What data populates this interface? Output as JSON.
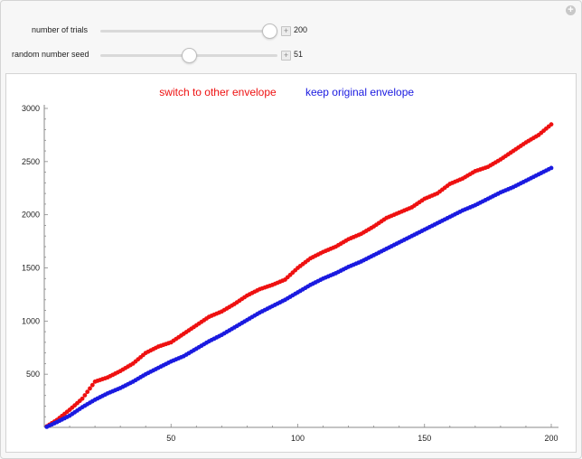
{
  "controls": {
    "trials": {
      "label": "number of trials",
      "value": "200",
      "fraction": 0.995
    },
    "seed": {
      "label": "random number seed",
      "value": "51",
      "fraction": 0.5
    }
  },
  "colors": {
    "switch": "#ee1111",
    "keep": "#1a1ae0"
  },
  "chart_data": {
    "type": "scatter",
    "title": "",
    "xlabel": "",
    "ylabel": "",
    "xlim": [
      0,
      200
    ],
    "ylim": [
      0,
      3000
    ],
    "x_ticks": [
      50,
      100,
      150,
      200
    ],
    "y_ticks": [
      500,
      1000,
      1500,
      2000,
      2500,
      3000
    ],
    "legend_position": "top-center",
    "series": [
      {
        "name": "switch to other envelope",
        "color": "#ee1111",
        "points": [
          [
            1,
            10
          ],
          [
            5,
            70
          ],
          [
            10,
            165
          ],
          [
            15,
            270
          ],
          [
            20,
            430
          ],
          [
            25,
            470
          ],
          [
            30,
            530
          ],
          [
            35,
            600
          ],
          [
            40,
            700
          ],
          [
            45,
            760
          ],
          [
            50,
            800
          ],
          [
            55,
            880
          ],
          [
            60,
            960
          ],
          [
            65,
            1040
          ],
          [
            70,
            1090
          ],
          [
            75,
            1160
          ],
          [
            80,
            1240
          ],
          [
            85,
            1300
          ],
          [
            90,
            1340
          ],
          [
            95,
            1390
          ],
          [
            100,
            1500
          ],
          [
            105,
            1590
          ],
          [
            110,
            1650
          ],
          [
            115,
            1700
          ],
          [
            120,
            1770
          ],
          [
            125,
            1820
          ],
          [
            130,
            1890
          ],
          [
            135,
            1970
          ],
          [
            140,
            2020
          ],
          [
            145,
            2070
          ],
          [
            150,
            2150
          ],
          [
            155,
            2200
          ],
          [
            160,
            2290
          ],
          [
            165,
            2340
          ],
          [
            170,
            2410
          ],
          [
            175,
            2450
          ],
          [
            180,
            2520
          ],
          [
            185,
            2600
          ],
          [
            190,
            2680
          ],
          [
            195,
            2750
          ],
          [
            200,
            2850
          ]
        ]
      },
      {
        "name": "keep original envelope",
        "color": "#1a1ae0",
        "points": [
          [
            1,
            5
          ],
          [
            5,
            50
          ],
          [
            10,
            110
          ],
          [
            15,
            190
          ],
          [
            20,
            260
          ],
          [
            25,
            320
          ],
          [
            30,
            370
          ],
          [
            35,
            430
          ],
          [
            40,
            500
          ],
          [
            45,
            560
          ],
          [
            50,
            620
          ],
          [
            55,
            670
          ],
          [
            60,
            740
          ],
          [
            65,
            810
          ],
          [
            70,
            870
          ],
          [
            75,
            940
          ],
          [
            80,
            1010
          ],
          [
            85,
            1080
          ],
          [
            90,
            1140
          ],
          [
            95,
            1200
          ],
          [
            100,
            1270
          ],
          [
            105,
            1340
          ],
          [
            110,
            1400
          ],
          [
            115,
            1450
          ],
          [
            120,
            1510
          ],
          [
            125,
            1560
          ],
          [
            130,
            1620
          ],
          [
            135,
            1680
          ],
          [
            140,
            1740
          ],
          [
            145,
            1800
          ],
          [
            150,
            1860
          ],
          [
            155,
            1920
          ],
          [
            160,
            1980
          ],
          [
            165,
            2040
          ],
          [
            170,
            2090
          ],
          [
            175,
            2150
          ],
          [
            180,
            2210
          ],
          [
            185,
            2260
          ],
          [
            190,
            2320
          ],
          [
            195,
            2380
          ],
          [
            200,
            2440
          ]
        ]
      }
    ]
  }
}
